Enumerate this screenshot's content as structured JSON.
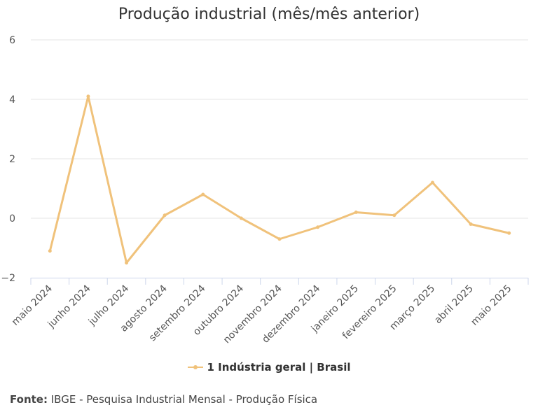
{
  "chart_data": {
    "type": "line",
    "title": "Produção industrial (mês/mês anterior)",
    "categories": [
      "maio 2024",
      "junho 2024",
      "julho 2024",
      "agosto 2024",
      "setembro 2024",
      "outubro 2024",
      "novembro 2024",
      "dezembro 2024",
      "janeiro 2025",
      "fevereiro 2025",
      "março 2025",
      "abril 2025",
      "maio 2025"
    ],
    "series": [
      {
        "name": "1 Indústria geral | Brasil",
        "values": [
          -1.1,
          4.1,
          -1.5,
          0.1,
          0.8,
          0.0,
          -0.7,
          -0.3,
          0.2,
          0.1,
          1.2,
          -0.2,
          -0.5
        ]
      }
    ],
    "yticks": [
      "6",
      "4",
      "2",
      "0",
      "−2"
    ],
    "ylim": [
      -2,
      6
    ],
    "grid": true,
    "legend_position": "bottom",
    "colors": {
      "series": "#f0c27b",
      "grid": "#e6e6e6",
      "axis": "#ccd6eb"
    }
  },
  "source": {
    "label": "Fonte:",
    "text": "IBGE - Pesquisa Industrial Mensal - Produção Física"
  }
}
